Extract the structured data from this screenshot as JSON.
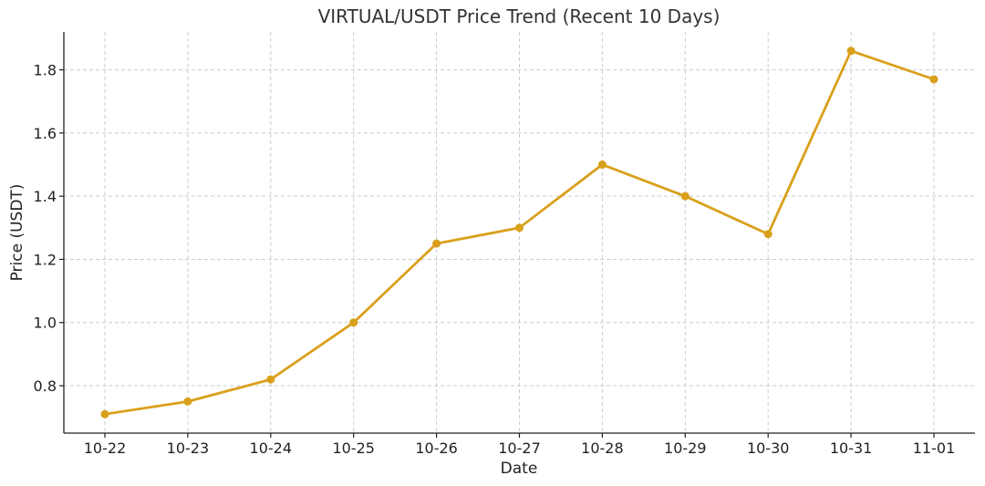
{
  "chart_data": {
    "type": "line",
    "title": "VIRTUAL/USDT Price Trend (Recent 10 Days)",
    "xlabel": "Date",
    "ylabel": "Price (USDT)",
    "categories": [
      "10-22",
      "10-23",
      "10-24",
      "10-25",
      "10-26",
      "10-27",
      "10-28",
      "10-29",
      "10-30",
      "10-31",
      "11-01"
    ],
    "series": [
      {
        "values": [
          0.71,
          0.75,
          0.82,
          1.0,
          1.25,
          1.3,
          1.5,
          1.4,
          1.28,
          1.86,
          1.77
        ],
        "color": "#d9a01b"
      }
    ],
    "yticks": [
      0.8,
      1.0,
      1.2,
      1.4,
      1.6,
      1.8
    ],
    "ylim": [
      0.65,
      1.92
    ],
    "grid": true,
    "marker": "circle"
  }
}
